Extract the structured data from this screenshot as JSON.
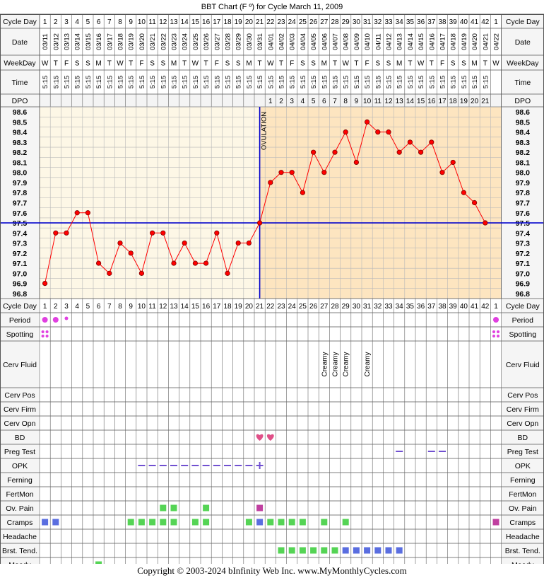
{
  "title": "BBT Chart (F º) for Cycle March 11, 2009",
  "labels": {
    "cycle_day": "Cycle Day",
    "date": "Date",
    "weekday": "WeekDay",
    "time": "Time",
    "dpo": "DPO",
    "ovulation": "OVULATION"
  },
  "cycle_days": [
    "1",
    "2",
    "3",
    "4",
    "5",
    "6",
    "7",
    "8",
    "9",
    "10",
    "11",
    "12",
    "13",
    "14",
    "15",
    "16",
    "17",
    "18",
    "19",
    "20",
    "21",
    "22",
    "23",
    "24",
    "25",
    "26",
    "27",
    "28",
    "29",
    "30",
    "31",
    "32",
    "33",
    "34",
    "35",
    "36",
    "37",
    "38",
    "39",
    "40",
    "41",
    "42",
    "1"
  ],
  "dates": [
    "03/11",
    "03/12",
    "03/13",
    "03/14",
    "03/15",
    "03/16",
    "03/17",
    "03/18",
    "03/19",
    "03/20",
    "03/21",
    "03/22",
    "03/23",
    "03/24",
    "03/25",
    "03/26",
    "03/27",
    "03/28",
    "03/29",
    "03/30",
    "03/31",
    "04/01",
    "04/02",
    "04/03",
    "04/04",
    "04/05",
    "04/06",
    "04/07",
    "04/08",
    "04/09",
    "04/10",
    "04/11",
    "04/12",
    "04/13",
    "04/14",
    "04/15",
    "04/16",
    "04/17",
    "04/18",
    "04/19",
    "04/20",
    "04/21",
    "04/22"
  ],
  "weekdays": [
    "W",
    "T",
    "F",
    "S",
    "S",
    "M",
    "T",
    "W",
    "T",
    "F",
    "S",
    "S",
    "M",
    "T",
    "W",
    "T",
    "F",
    "S",
    "S",
    "M",
    "T",
    "W",
    "T",
    "F",
    "S",
    "S",
    "M",
    "T",
    "W",
    "T",
    "F",
    "S",
    "S",
    "M",
    "T",
    "W",
    "T",
    "F",
    "S",
    "S",
    "M",
    "T",
    "W"
  ],
  "times": [
    "5:15",
    "5:15",
    "5:15",
    "5:15",
    "5:15",
    "5:15",
    "5:15",
    "5:15",
    "5:15",
    "5:15",
    "5:15",
    "5:15",
    "5:15",
    "5:15",
    "5:15",
    "5:15",
    "5:15",
    "5:15",
    "5:15",
    "5:15",
    "5:15",
    "5:15",
    "5:15",
    "5:15",
    "5:15",
    "5:15",
    "5:15",
    "5:15",
    "5:15",
    "5:15",
    "5:15",
    "5:15",
    "5:15",
    "5:15",
    "5:15",
    "5:15",
    "5:15",
    "5:15",
    "5:15",
    "5:15",
    "5:15",
    "5:15",
    ""
  ],
  "dpo": [
    "",
    "",
    "",
    "",
    "",
    "",
    "",
    "",
    "",
    "",
    "",
    "",
    "",
    "",
    "",
    "",
    "",
    "",
    "",
    "",
    "",
    "1",
    "2",
    "3",
    "4",
    "5",
    "6",
    "7",
    "8",
    "9",
    "10",
    "11",
    "12",
    "13",
    "14",
    "15",
    "16",
    "17",
    "18",
    "19",
    "20",
    "21",
    ""
  ],
  "chart_data": {
    "type": "line",
    "title": "BBT Chart (F º) for Cycle March 11, 2009",
    "x": [
      1,
      2,
      3,
      4,
      5,
      6,
      7,
      8,
      9,
      10,
      11,
      12,
      13,
      14,
      15,
      16,
      17,
      18,
      19,
      20,
      21,
      22,
      23,
      24,
      25,
      26,
      27,
      28,
      29,
      30,
      31,
      32,
      33,
      34,
      35,
      36,
      37,
      38,
      39,
      40,
      41,
      42
    ],
    "series": [
      {
        "values": [
          96.9,
          97.4,
          97.4,
          97.6,
          97.6,
          97.1,
          97.0,
          97.3,
          97.2,
          97.0,
          97.4,
          97.4,
          97.1,
          97.3,
          97.1,
          97.1,
          97.4,
          97.0,
          97.3,
          97.3,
          97.5,
          97.9,
          98.0,
          98.0,
          97.8,
          98.2,
          98.0,
          98.2,
          98.4,
          98.1,
          98.5,
          98.4,
          98.4,
          98.2,
          98.3,
          98.2,
          98.3,
          98.0,
          98.1,
          97.8,
          97.7,
          97.5
        ]
      }
    ],
    "ylim": [
      96.8,
      98.6
    ],
    "y_ticks": [
      "98.6",
      "98.5",
      "98.4",
      "98.3",
      "98.2",
      "98.1",
      "98.0",
      "97.9",
      "97.8",
      "97.7",
      "97.6",
      "97.5",
      "97.4",
      "97.3",
      "97.2",
      "97.1",
      "97.0",
      "96.9",
      "96.8"
    ],
    "coverline": 97.5,
    "ovulation_day": 21,
    "colors": {
      "line": "#ff0000",
      "marker": "#ff0000",
      "coverline": "#0000cc",
      "preov_bg": "#fdf7e6",
      "postov_bg": "#fde5c0",
      "grid": "#b8b8b8"
    }
  },
  "rows": [
    {
      "label": "Period",
      "entries": [
        {
          "day": 1,
          "sym": "dot-lg"
        },
        {
          "day": 2,
          "sym": "dot-lg"
        },
        {
          "day": 3,
          "sym": "dot-sm"
        },
        {
          "day": 43,
          "sym": "dot-lg"
        }
      ]
    },
    {
      "label": "Spotting",
      "entries": [
        {
          "day": 1,
          "sym": "dots4"
        },
        {
          "day": 43,
          "sym": "dots4"
        }
      ]
    },
    {
      "label": "Cerv Fluid",
      "tall": true,
      "entries": [
        {
          "day": 27,
          "text": "Creamy"
        },
        {
          "day": 28,
          "text": "Creamy"
        },
        {
          "day": 29,
          "text": "Creamy"
        },
        {
          "day": 31,
          "text": "Creamy"
        }
      ]
    },
    {
      "label": "Cerv Pos",
      "entries": []
    },
    {
      "label": "Cerv Firm",
      "entries": []
    },
    {
      "label": "Cerv Opn",
      "entries": []
    },
    {
      "label": "BD",
      "entries": [
        {
          "day": 21,
          "sym": "heart"
        },
        {
          "day": 22,
          "sym": "heart"
        }
      ]
    },
    {
      "label": "Preg Test",
      "entries": [
        {
          "day": 34,
          "sym": "dash"
        },
        {
          "day": 37,
          "sym": "dash"
        },
        {
          "day": 38,
          "sym": "dash"
        }
      ]
    },
    {
      "label": "OPK",
      "entries": [
        {
          "day": 10,
          "sym": "dash"
        },
        {
          "day": 11,
          "sym": "dash"
        },
        {
          "day": 12,
          "sym": "dash"
        },
        {
          "day": 13,
          "sym": "dash"
        },
        {
          "day": 14,
          "sym": "dash"
        },
        {
          "day": 15,
          "sym": "dash"
        },
        {
          "day": 16,
          "sym": "dash"
        },
        {
          "day": 17,
          "sym": "dash"
        },
        {
          "day": 18,
          "sym": "dash"
        },
        {
          "day": 19,
          "sym": "dash"
        },
        {
          "day": 20,
          "sym": "dash"
        },
        {
          "day": 21,
          "sym": "plus"
        }
      ]
    },
    {
      "label": "Ferning",
      "entries": []
    },
    {
      "label": "FertMon",
      "entries": []
    },
    {
      "label": "Ov. Pain",
      "entries": [
        {
          "day": 12,
          "sym": "sq-green"
        },
        {
          "day": 13,
          "sym": "sq-green"
        },
        {
          "day": 16,
          "sym": "sq-green"
        },
        {
          "day": 21,
          "sym": "sq-magenta"
        }
      ]
    },
    {
      "label": "Cramps",
      "entries": [
        {
          "day": 1,
          "sym": "sq-blue"
        },
        {
          "day": 2,
          "sym": "sq-blue"
        },
        {
          "day": 9,
          "sym": "sq-green"
        },
        {
          "day": 10,
          "sym": "sq-green"
        },
        {
          "day": 11,
          "sym": "sq-green"
        },
        {
          "day": 12,
          "sym": "sq-green"
        },
        {
          "day": 13,
          "sym": "sq-green"
        },
        {
          "day": 15,
          "sym": "sq-green"
        },
        {
          "day": 16,
          "sym": "sq-green"
        },
        {
          "day": 20,
          "sym": "sq-green"
        },
        {
          "day": 21,
          "sym": "sq-blue"
        },
        {
          "day": 22,
          "sym": "sq-green"
        },
        {
          "day": 23,
          "sym": "sq-green"
        },
        {
          "day": 24,
          "sym": "sq-green"
        },
        {
          "day": 25,
          "sym": "sq-green"
        },
        {
          "day": 27,
          "sym": "sq-green"
        },
        {
          "day": 29,
          "sym": "sq-green"
        },
        {
          "day": 43,
          "sym": "sq-magenta"
        }
      ]
    },
    {
      "label": "Headache",
      "entries": []
    },
    {
      "label": "Brst. Tend.",
      "entries": [
        {
          "day": 23,
          "sym": "sq-green"
        },
        {
          "day": 24,
          "sym": "sq-green"
        },
        {
          "day": 25,
          "sym": "sq-green"
        },
        {
          "day": 26,
          "sym": "sq-green"
        },
        {
          "day": 27,
          "sym": "sq-green"
        },
        {
          "day": 28,
          "sym": "sq-green"
        },
        {
          "day": 29,
          "sym": "sq-blue"
        },
        {
          "day": 30,
          "sym": "sq-blue"
        },
        {
          "day": 31,
          "sym": "sq-blue"
        },
        {
          "day": 32,
          "sym": "sq-blue"
        },
        {
          "day": 33,
          "sym": "sq-blue"
        },
        {
          "day": 34,
          "sym": "sq-blue"
        }
      ]
    },
    {
      "label": "Moody",
      "entries": [
        {
          "day": 6,
          "sym": "sq-green"
        }
      ]
    }
  ],
  "symbol_colors": {
    "dot": "#e040e0",
    "green": "#55d455",
    "blue": "#5a6ee0",
    "magenta": "#c040a0",
    "heart": "#e05088",
    "dash": "#7050d0"
  },
  "footer": "Copyright © 2003-2024 bInfinity Web Inc.     www.MyMonthlyCycles.com"
}
